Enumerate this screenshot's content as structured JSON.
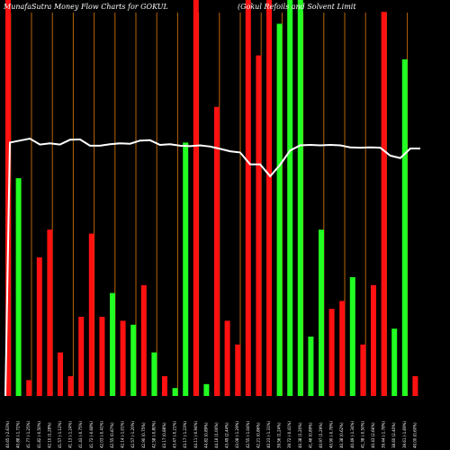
{
  "header": {
    "left_title": "MunafaSutra  Money Flow  Charts for GOKUL",
    "right_title": "(Gokul Refoils and Solvent Limit"
  },
  "colors": {
    "background": "#000000",
    "up": "#22ff22",
    "down": "#ff1111",
    "line": "#ffffff",
    "grid": "#b8650a"
  },
  "chart_data": {
    "type": "bar",
    "ylim": [
      0,
      100
    ],
    "grid": "vertical lines every 2 bars",
    "categories": [
      "40.65 (-2.63%)",
      "40.88 (-1.72%)",
      "41.77 (-1.25%)",
      "41.82 (-0.50%)",
      "42.10 (1.28%)",
      "41.57 (-1.12%)",
      "41.13 (-1.24%)",
      "41.43 (-0.75%)",
      "41.72 (-0.68%)",
      "42.03 (-0.41%)",
      "42.55 (0.87%)",
      "42.14 (-1.01%)",
      "42.57 (-1.20%)",
      "42.90 (0.75%)",
      "42.58 (-0.80%)",
      "43.17 (0.88%)",
      "43.47 (-0.21%)",
      "43.17 (-1.23%)",
      "44.11 (-0.94%)",
      "44.82 (0.89%)",
      "44.16 (1.00%)",
      "43.49 (2.44%)",
      "43.08 (-1.29%)",
      "42.55 (-1.04%)",
      "42.21 (0.86%)",
      "40.23 (-1.31%)",
      "39.56 (1.24%)",
      "39.72 (-0.41%)",
      "40.38 (1.20%)",
      "41.46 (0.89%)",
      "40.97 (1.29%)",
      "40.90 (-0.78%)",
      "40.38 (0.62%)",
      "40.49 (-1.34%)",
      "41.38 (-0.50%)",
      "40.43 (2.66%)",
      "39.44 (-1.78%)",
      "38.60 (2.40%)",
      "39.61 (-1.69%)",
      "40.00 (0.60%)"
    ],
    "series": [
      {
        "values": [
          100,
          55,
          4,
          35,
          42,
          11,
          5,
          20,
          41,
          20,
          26,
          19,
          18,
          28,
          11,
          5,
          2,
          64,
          100,
          3,
          73,
          19,
          13,
          100,
          86,
          100,
          94,
          100,
          100,
          15,
          42,
          22,
          24,
          30,
          13,
          28,
          97,
          17,
          85,
          5
        ],
        "direction": [
          "down",
          "up",
          "down",
          "down",
          "down",
          "down",
          "down",
          "down",
          "down",
          "down",
          "up",
          "down",
          "up",
          "down",
          "up",
          "down",
          "up",
          "up",
          "down",
          "up",
          "down",
          "down",
          "down",
          "down",
          "down",
          "down",
          "up",
          "up",
          "up",
          "up",
          "up",
          "down",
          "down",
          "up",
          "down",
          "down",
          "down",
          "up",
          "up",
          "down"
        ]
      }
    ],
    "price_line": [
      64,
      64.5,
      65,
      63.5,
      63.8,
      63.5,
      64.7,
      64.8,
      63.2,
      63.2,
      63.6,
      63.8,
      63.7,
      64.5,
      64.6,
      63.4,
      63.6,
      63.2,
      63.1,
      63.3,
      63,
      62.4,
      61.8,
      61.5,
      58.5,
      58.5,
      55.5,
      58.4,
      62,
      63.3,
      63.4,
      63.3,
      63.4,
      63.3,
      62.8,
      62.7,
      62.8,
      62.7,
      60.7,
      60.1,
      62.5,
      62.5
    ]
  }
}
